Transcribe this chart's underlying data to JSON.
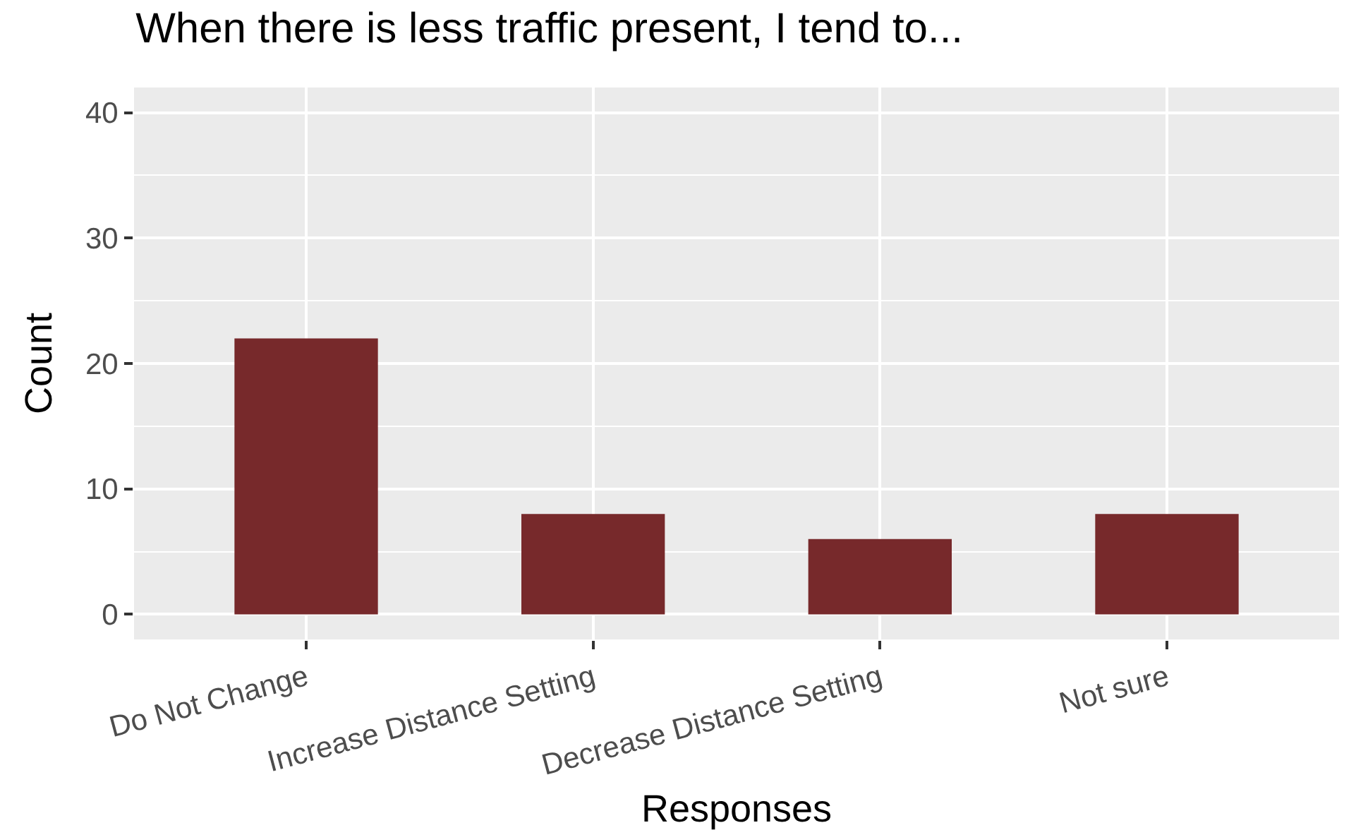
{
  "chart_data": {
    "type": "bar",
    "title": "When there is less traffic present, I tend to...",
    "xlabel": "Responses",
    "ylabel": "Count",
    "categories": [
      "Do Not Change",
      "Increase Distance Setting",
      "Decrease Distance Setting",
      "Not sure"
    ],
    "values": [
      22,
      8,
      6,
      8
    ],
    "color": "#77292b",
    "ylim": [
      -2,
      42
    ],
    "yticks": [
      0,
      10,
      20,
      30,
      40
    ],
    "grid": true,
    "legend": false
  }
}
